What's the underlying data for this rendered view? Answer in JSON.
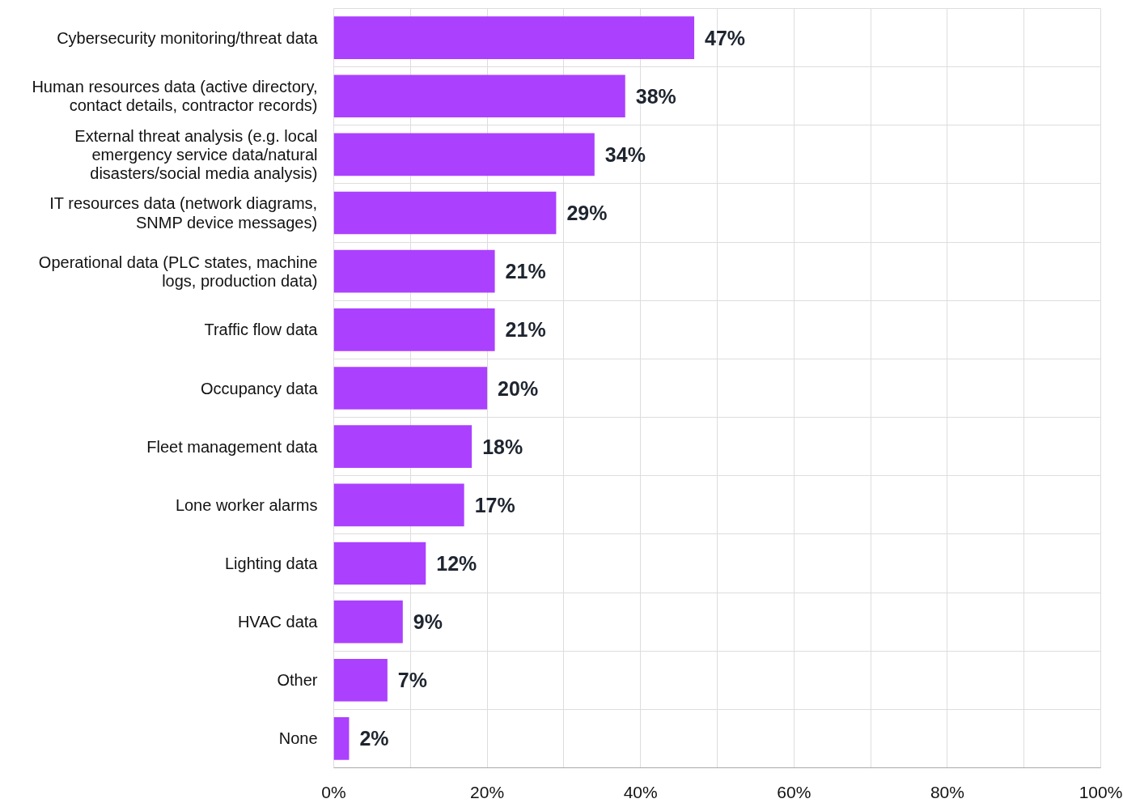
{
  "chart_data": {
    "type": "bar",
    "orientation": "horizontal",
    "categories": [
      "Cybersecurity monitoring/threat data",
      "Human resources data (active directory, contact details, contractor records)",
      "External threat analysis (e.g. local emergency service data/natural disasters/social media analysis)",
      "IT resources data (network diagrams, SNMP device messages)",
      "Operational data (PLC states, machine logs, production data)",
      "Traffic flow data",
      "Occupancy data",
      "Fleet management data",
      "Lone worker alarms",
      "Lighting data",
      "HVAC data",
      "Other",
      "None"
    ],
    "values": [
      47,
      38,
      34,
      29,
      21,
      21,
      20,
      18,
      17,
      12,
      9,
      7,
      2
    ],
    "color": "#ab40ff",
    "value_labels": [
      "47%",
      "38%",
      "34%",
      "29%",
      "21%",
      "21%",
      "20%",
      "18%",
      "17%",
      "12%",
      "9%",
      "7%",
      "2%"
    ],
    "xlim": [
      0,
      100
    ],
    "xticks": [
      {
        "value": 0,
        "label": "0%"
      },
      {
        "value": 10,
        "label": null
      },
      {
        "value": 20,
        "label": "20%"
      },
      {
        "value": 30,
        "label": null
      },
      {
        "value": 40,
        "label": "40%"
      },
      {
        "value": 50,
        "label": null
      },
      {
        "value": 60,
        "label": "60%"
      },
      {
        "value": 70,
        "label": null
      },
      {
        "value": 80,
        "label": "80%"
      },
      {
        "value": 90,
        "label": null
      },
      {
        "value": 100,
        "label": "100%"
      }
    ],
    "grid": true
  }
}
